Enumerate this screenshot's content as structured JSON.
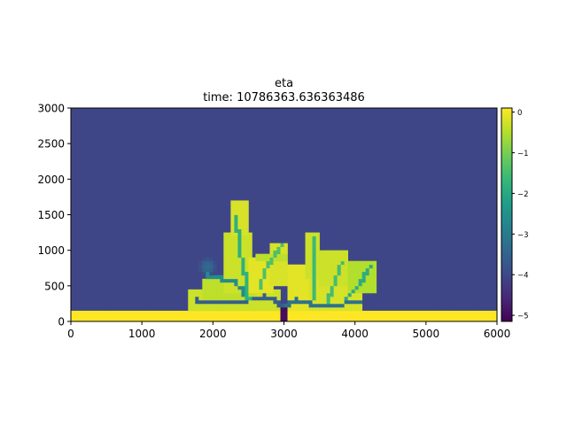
{
  "chart_data": {
    "type": "heatmap",
    "title": "eta",
    "subtitle": "time: 10786363.636363486",
    "xlabel": "",
    "ylabel": "",
    "xlim": [
      0,
      6000
    ],
    "ylim": [
      0,
      3000
    ],
    "xticks": [
      "0",
      "1000",
      "2000",
      "3000",
      "4000",
      "5000",
      "6000"
    ],
    "yticks": [
      "0",
      "500",
      "1000",
      "1500",
      "2000",
      "2500",
      "3000"
    ],
    "colorbar": {
      "ticks": [
        "0",
        "−1",
        "−2",
        "−3",
        "−4",
        "−5"
      ],
      "tick_values": [
        0,
        -1,
        -2,
        -3,
        -4,
        -5
      ],
      "range": [
        -5.15,
        0.1
      ],
      "colormap": "viridis"
    },
    "basin_value": -4.05,
    "cell_size": 50,
    "land_strip": {
      "y_max": 150,
      "value": 0.1
    },
    "inlet_channel": {
      "x": [
        2950,
        3050
      ],
      "y": [
        0,
        200
      ],
      "value": -5.0
    },
    "delta_lobes": [
      {
        "x": [
          1650,
          2950
        ],
        "y": [
          150,
          450
        ],
        "value": -0.3
      },
      {
        "x": [
          1850,
          2600
        ],
        "y": [
          300,
          600
        ],
        "value": -0.4
      },
      {
        "x": [
          2150,
          2550
        ],
        "y": [
          400,
          1250
        ],
        "value": -0.3
      },
      {
        "x": [
          2250,
          2500
        ],
        "y": [
          1200,
          1700
        ],
        "value": -0.2
      },
      {
        "x": [
          2500,
          2850
        ],
        "y": [
          400,
          900
        ],
        "value": -0.1
      },
      {
        "x": [
          2800,
          3050
        ],
        "y": [
          500,
          1100
        ],
        "value": -0.2
      },
      {
        "x": [
          3050,
          3350
        ],
        "y": [
          150,
          800
        ],
        "value": -0.1
      },
      {
        "x": [
          3300,
          3500
        ],
        "y": [
          600,
          1250
        ],
        "value": -0.3
      },
      {
        "x": [
          3350,
          4100
        ],
        "y": [
          150,
          600
        ],
        "value": -0.2
      },
      {
        "x": [
          3500,
          3900
        ],
        "y": [
          500,
          1000
        ],
        "value": -0.3
      },
      {
        "x": [
          3900,
          4300
        ],
        "y": [
          400,
          850
        ],
        "value": -0.5
      },
      {
        "x": [
          2600,
          3050
        ],
        "y": [
          850,
          950
        ],
        "value": -0.4
      }
    ],
    "channels": [
      {
        "points": [
          [
            3000,
            200
          ],
          [
            2850,
            300
          ],
          [
            2700,
            350
          ],
          [
            2500,
            300
          ],
          [
            2300,
            250
          ],
          [
            2000,
            250
          ],
          [
            1750,
            300
          ]
        ],
        "value": -3.6
      },
      {
        "points": [
          [
            3000,
            200
          ],
          [
            3150,
            300
          ],
          [
            3350,
            250
          ],
          [
            3600,
            200
          ],
          [
            3850,
            250
          ],
          [
            4050,
            250
          ]
        ],
        "value": -3.2
      },
      {
        "points": [
          [
            2500,
            300
          ],
          [
            2400,
            450
          ],
          [
            2300,
            550
          ],
          [
            2100,
            600
          ],
          [
            1900,
            650
          ]
        ],
        "value": -2.6
      },
      {
        "points": [
          [
            2500,
            300
          ],
          [
            2450,
            650
          ],
          [
            2380,
            1000
          ],
          [
            2330,
            1450
          ]
        ],
        "value": -1.8
      },
      {
        "points": [
          [
            2650,
            450
          ],
          [
            2750,
            750
          ],
          [
            2950,
            1050
          ]
        ],
        "value": -1.4
      },
      {
        "points": [
          [
            3400,
            300
          ],
          [
            3420,
            700
          ],
          [
            3400,
            1150
          ]
        ],
        "value": -1.6
      },
      {
        "points": [
          [
            3600,
            250
          ],
          [
            3700,
            500
          ],
          [
            3800,
            800
          ]
        ],
        "value": -1.5
      },
      {
        "points": [
          [
            3850,
            300
          ],
          [
            4050,
            500
          ],
          [
            4200,
            750
          ]
        ],
        "value": -1.9
      }
    ],
    "faint_blob": {
      "x": [
        1800,
        2050
      ],
      "y": [
        650,
        900
      ],
      "value": -3.3
    }
  }
}
